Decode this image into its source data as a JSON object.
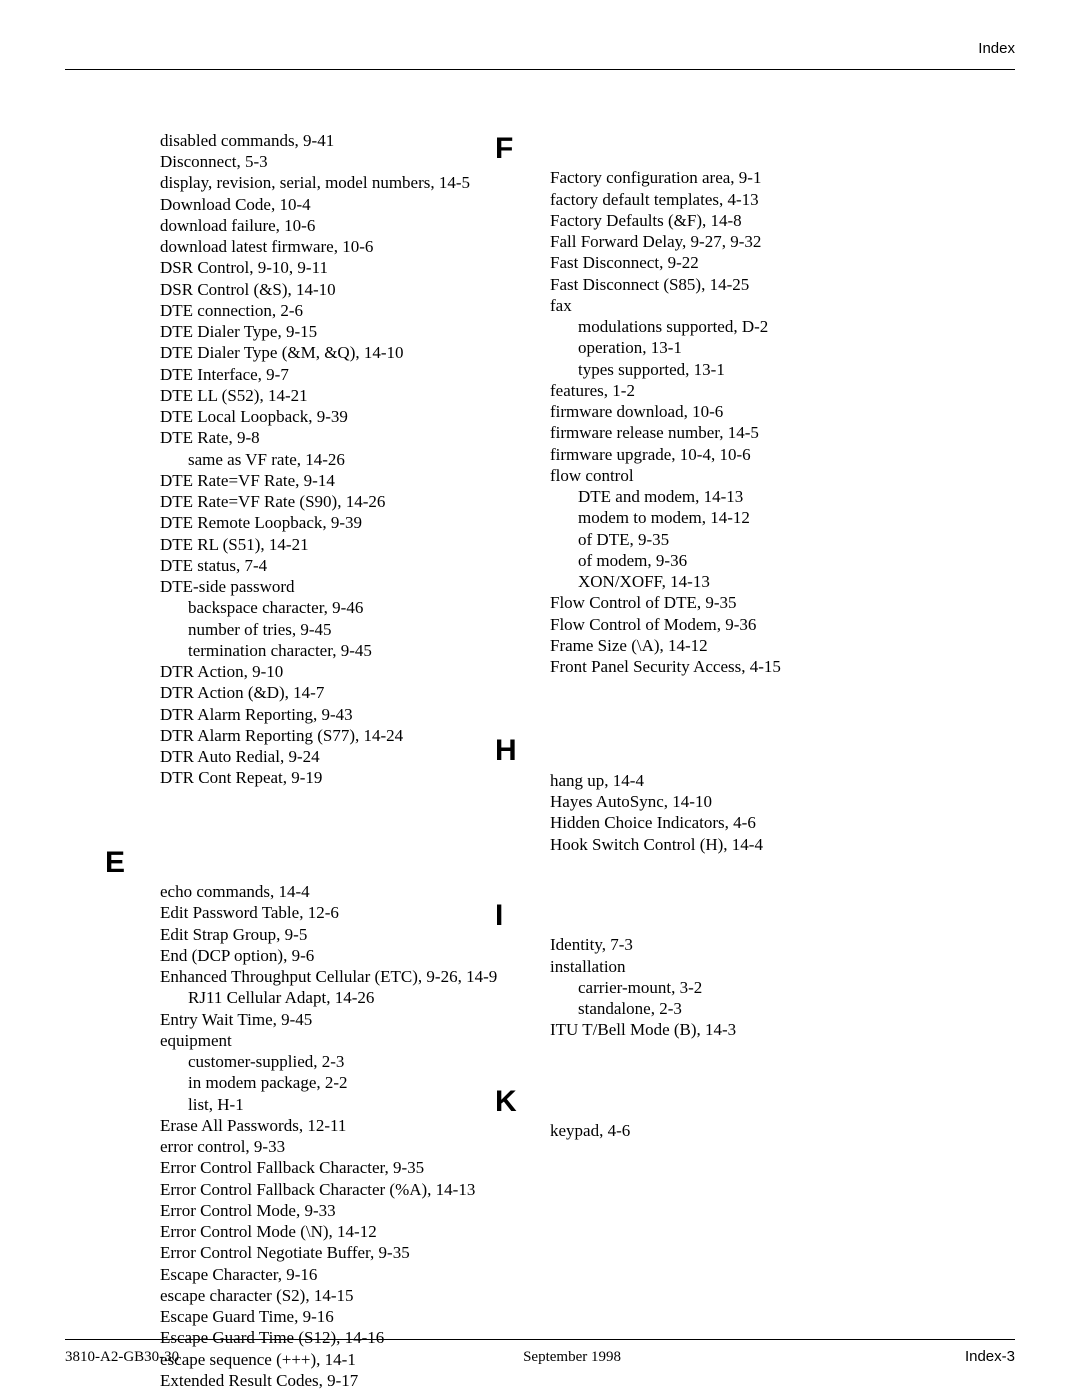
{
  "header": {
    "title": "Index"
  },
  "left": {
    "pre": [
      {
        "t": "disabled commands, 9-41"
      },
      {
        "t": "Disconnect, 5-3"
      },
      {
        "t": "display, revision, serial, model numbers, 14-5"
      },
      {
        "t": "Download Code, 10-4"
      },
      {
        "t": "download failure, 10-6"
      },
      {
        "t": "download latest firmware, 10-6"
      },
      {
        "t": "DSR Control, 9-10, 9-11"
      },
      {
        "t": "DSR Control (&S), 14-10"
      },
      {
        "t": "DTE connection, 2-6"
      },
      {
        "t": "DTE Dialer Type, 9-15"
      },
      {
        "t": "DTE Dialer Type (&M, &Q), 14-10"
      },
      {
        "t": "DTE Interface, 9-7"
      },
      {
        "t": "DTE LL (S52), 14-21"
      },
      {
        "t": "DTE Local Loopback, 9-39"
      },
      {
        "t": "DTE Rate, 9-8"
      },
      {
        "t": "same as VF rate, 14-26",
        "sub": true
      },
      {
        "t": "DTE Rate=VF Rate, 9-14"
      },
      {
        "t": "DTE Rate=VF Rate (S90), 14-26"
      },
      {
        "t": "DTE Remote Loopback, 9-39"
      },
      {
        "t": "DTE RL (S51), 14-21"
      },
      {
        "t": "DTE status, 7-4"
      },
      {
        "t": "DTE-side password"
      },
      {
        "t": "backspace character, 9-46",
        "sub": true
      },
      {
        "t": "number of tries, 9-45",
        "sub": true
      },
      {
        "t": "termination character, 9-45",
        "sub": true
      },
      {
        "t": "DTR Action, 9-10"
      },
      {
        "t": "DTR Action (&D), 14-7"
      },
      {
        "t": "DTR Alarm Reporting, 9-43"
      },
      {
        "t": "DTR Alarm Reporting (S77), 14-24"
      },
      {
        "t": "DTR Auto Redial, 9-24"
      },
      {
        "t": "DTR Cont Repeat, 9-19"
      }
    ],
    "E_letter": "E",
    "E": [
      {
        "t": "echo commands, 14-4"
      },
      {
        "t": "Edit Password Table, 12-6"
      },
      {
        "t": "Edit Strap Group, 9-5"
      },
      {
        "t": "End (DCP option), 9-6"
      },
      {
        "t": "Enhanced Throughput Cellular (ETC), 9-26, 14-9"
      },
      {
        "t": "RJ11 Cellular Adapt, 14-26",
        "sub": true
      },
      {
        "t": "Entry Wait Time, 9-45"
      },
      {
        "t": "equipment"
      },
      {
        "t": "customer-supplied, 2-3",
        "sub": true
      },
      {
        "t": "in modem package, 2-2",
        "sub": true
      },
      {
        "t": "list, H-1",
        "sub": true
      },
      {
        "t": "Erase All Passwords, 12-11"
      },
      {
        "t": "error control, 9-33"
      },
      {
        "t": "Error Control Fallback Character, 9-35"
      },
      {
        "t": "Error Control Fallback Character (%A), 14-13"
      },
      {
        "t": "Error Control Mode, 9-33"
      },
      {
        "t": "Error Control Mode (\\N), 14-12"
      },
      {
        "t": "Error Control Negotiate Buffer, 9-35"
      },
      {
        "t": "Escape Character, 9-16"
      },
      {
        "t": "escape character (S2), 14-15"
      },
      {
        "t": "Escape Guard Time, 9-16"
      },
      {
        "t": "Escape Guard Time (S12), 14-16"
      },
      {
        "t": "escape sequence (+++), 14-1"
      },
      {
        "t": "Extended Result Codes, 9-17"
      }
    ]
  },
  "right": {
    "F_letter": "F",
    "F": [
      {
        "t": "Factory configuration area, 9-1"
      },
      {
        "t": "factory default templates, 4-13"
      },
      {
        "t": "Factory Defaults (&F), 14-8"
      },
      {
        "t": "Fall Forward Delay, 9-27, 9-32"
      },
      {
        "t": "Fast Disconnect, 9-22"
      },
      {
        "t": "Fast Disconnect (S85), 14-25"
      },
      {
        "t": "fax"
      },
      {
        "t": "modulations supported, D-2",
        "sub": true
      },
      {
        "t": "operation, 13-1",
        "sub": true
      },
      {
        "t": "types supported, 13-1",
        "sub": true
      },
      {
        "t": "features, 1-2"
      },
      {
        "t": "firmware download, 10-6"
      },
      {
        "t": "firmware release number, 14-5"
      },
      {
        "t": "firmware upgrade, 10-4, 10-6"
      },
      {
        "t": "flow control"
      },
      {
        "t": "DTE and modem, 14-13",
        "sub": true
      },
      {
        "t": "modem  to  modem, 14-12",
        "sub": true
      },
      {
        "t": "of DTE, 9-35",
        "sub": true
      },
      {
        "t": "of modem, 9-36",
        "sub": true
      },
      {
        "t": "XON/XOFF, 14-13",
        "sub": true
      },
      {
        "t": "Flow Control of DTE, 9-35"
      },
      {
        "t": "Flow Control of Modem, 9-36"
      },
      {
        "t": "Frame Size (\\A), 14-12"
      },
      {
        "t": "Front Panel Security Access, 4-15"
      }
    ],
    "H_letter": "H",
    "H": [
      {
        "t": "hang up, 14-4"
      },
      {
        "t": "Hayes AutoSync, 14-10"
      },
      {
        "t": "Hidden Choice Indicators, 4-6"
      },
      {
        "t": "Hook Switch Control (H), 14-4"
      }
    ],
    "I_letter": "I",
    "I": [
      {
        "t": "Identity, 7-3"
      },
      {
        "t": "installation"
      },
      {
        "t": "carrier-mount, 3-2",
        "sub": true
      },
      {
        "t": "standalone, 2-3",
        "sub": true
      },
      {
        "t": "ITU  T/Bell Mode (B), 14-3"
      }
    ],
    "K_letter": "K",
    "K": [
      {
        "t": "keypad, 4-6"
      }
    ]
  },
  "footer": {
    "left": "3810-A2-GB30-30",
    "center": "September 1998",
    "right": "Index-3"
  }
}
